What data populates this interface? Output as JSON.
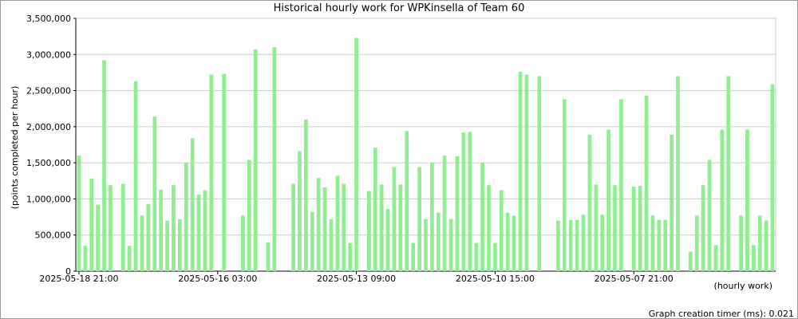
{
  "chart_data": {
    "type": "bar",
    "title": "Historical hourly work for WPKinsella of Team 60",
    "y_label": "(points completed per hour)",
    "x_label": "(hourly work)",
    "footer": "Graph creation timer (ms): 0.021",
    "color": "#90ee90",
    "grid": true,
    "ylim": [
      0,
      3500000
    ],
    "yticks": [
      0,
      {
        "value": 500000,
        "label": "500,000"
      },
      {
        "value": 1000000,
        "label": "1,000,000"
      },
      {
        "value": 1500000,
        "label": "1,500,000"
      },
      {
        "value": 2000000,
        "label": "2,000,000"
      },
      {
        "value": 2500000,
        "label": "2,500,000"
      },
      {
        "value": 3000000,
        "label": "3,000,000"
      },
      {
        "value": 3500000,
        "label": "3,500,000"
      }
    ],
    "categories": [
      "2025-05-18 21:00",
      null,
      null,
      null,
      null,
      null,
      null,
      null,
      null,
      null,
      null,
      null,
      null,
      null,
      null,
      null,
      null,
      null,
      null,
      null,
      null,
      null,
      "2025-05-16 03:00",
      null,
      null,
      null,
      null,
      null,
      null,
      null,
      null,
      null,
      null,
      null,
      null,
      null,
      null,
      null,
      null,
      null,
      null,
      null,
      null,
      null,
      "2025-05-13 09:00",
      null,
      null,
      null,
      null,
      null,
      null,
      null,
      null,
      null,
      null,
      null,
      null,
      null,
      null,
      null,
      null,
      null,
      null,
      null,
      null,
      null,
      "2025-05-10 15:00",
      null,
      null,
      null,
      null,
      null,
      null,
      null,
      null,
      null,
      null,
      null,
      null,
      null,
      null,
      null,
      null,
      null,
      null,
      null,
      null,
      null,
      "2025-05-07 21:00",
      null,
      null,
      null,
      null,
      null,
      null,
      null,
      null,
      null,
      null,
      null,
      null,
      null,
      null,
      null,
      null,
      null,
      null,
      null,
      null,
      null,
      null
    ],
    "values": [
      1600000,
      350000,
      1280000,
      920000,
      2920000,
      1190000,
      null,
      1210000,
      350000,
      2630000,
      770000,
      930000,
      2140000,
      1130000,
      700000,
      1190000,
      720000,
      1500000,
      1840000,
      1060000,
      1120000,
      2720000,
      null,
      2730000,
      null,
      null,
      770000,
      1540000,
      3070000,
      null,
      400000,
      3100000,
      null,
      null,
      1210000,
      1660000,
      2100000,
      820000,
      1290000,
      1160000,
      720000,
      1320000,
      1210000,
      390000,
      3230000,
      null,
      1110000,
      1710000,
      1200000,
      860000,
      1440000,
      1200000,
      1940000,
      390000,
      1440000,
      720000,
      1500000,
      810000,
      1600000,
      720000,
      1590000,
      1920000,
      1930000,
      390000,
      1500000,
      1190000,
      390000,
      1120000,
      810000,
      770000,
      2760000,
      2720000,
      null,
      2700000,
      null,
      null,
      700000,
      2380000,
      710000,
      710000,
      780000,
      1890000,
      1200000,
      780000,
      1960000,
      1190000,
      2380000,
      null,
      1170000,
      1180000,
      2430000,
      770000,
      710000,
      710000,
      1890000,
      2700000,
      null,
      270000,
      770000,
      1190000,
      1540000,
      360000,
      1960000,
      2700000,
      null,
      770000,
      1960000,
      360000,
      770000,
      700000,
      2590000
    ]
  }
}
